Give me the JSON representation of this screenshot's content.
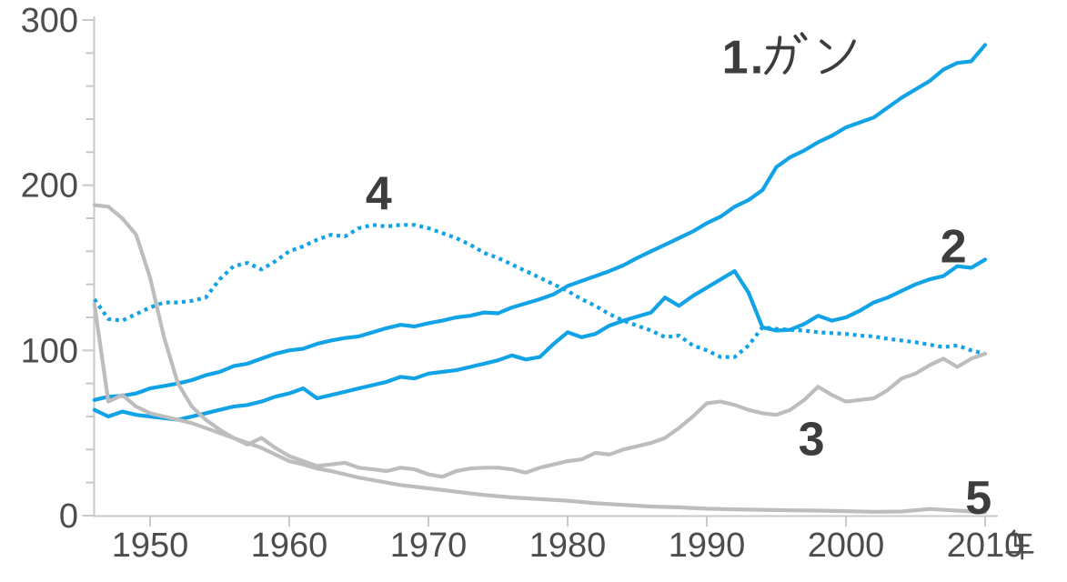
{
  "chart_data": {
    "type": "line",
    "title": "",
    "xlabel": "",
    "ylabel": "",
    "x_unit_label": "年",
    "xlim": [
      1946,
      2010
    ],
    "ylim": [
      0,
      300
    ],
    "x_ticks": [
      1950,
      1960,
      1970,
      1980,
      1990,
      2000,
      2010
    ],
    "y_ticks": [
      0,
      100,
      200,
      300
    ],
    "y_minor_step": 20,
    "grid": false,
    "legend": "inline-annotations",
    "colors": {
      "accent_blue": "#12a3e6",
      "gray_line": "#bdbdbd",
      "axis": "#c9c9c9",
      "tick_text": "#4d4d4d",
      "label_text": "#3d3d3d"
    },
    "series": [
      {
        "name": "1.ガン",
        "color": "#12a3e6",
        "style": "solid",
        "points": [
          [
            1946,
            70
          ],
          [
            1947,
            72
          ],
          [
            1948,
            72.5
          ],
          [
            1949,
            74
          ],
          [
            1950,
            77
          ],
          [
            1951,
            78.5
          ],
          [
            1952,
            80
          ],
          [
            1953,
            82
          ],
          [
            1954,
            85
          ],
          [
            1955,
            87
          ],
          [
            1956,
            90.5
          ],
          [
            1957,
            92
          ],
          [
            1958,
            95
          ],
          [
            1959,
            98
          ],
          [
            1960,
            100
          ],
          [
            1961,
            101
          ],
          [
            1962,
            104
          ],
          [
            1963,
            106
          ],
          [
            1964,
            107.5
          ],
          [
            1965,
            108.5
          ],
          [
            1966,
            111
          ],
          [
            1967,
            113.5
          ],
          [
            1968,
            115.5
          ],
          [
            1969,
            114.5
          ],
          [
            1970,
            116.5
          ],
          [
            1971,
            118
          ],
          [
            1972,
            120
          ],
          [
            1973,
            121
          ],
          [
            1974,
            123
          ],
          [
            1975,
            122.5
          ],
          [
            1976,
            126
          ],
          [
            1977,
            128.5
          ],
          [
            1978,
            131
          ],
          [
            1979,
            134
          ],
          [
            1980,
            139
          ],
          [
            1981,
            142
          ],
          [
            1982,
            145
          ],
          [
            1983,
            148
          ],
          [
            1984,
            151.5
          ],
          [
            1985,
            156
          ],
          [
            1986,
            160
          ],
          [
            1987,
            164
          ],
          [
            1988,
            168
          ],
          [
            1989,
            172
          ],
          [
            1990,
            177
          ],
          [
            1991,
            181
          ],
          [
            1992,
            187
          ],
          [
            1993,
            191
          ],
          [
            1994,
            197
          ],
          [
            1995,
            211
          ],
          [
            1996,
            217
          ],
          [
            1997,
            221
          ],
          [
            1998,
            226
          ],
          [
            1999,
            230
          ],
          [
            2000,
            235
          ],
          [
            2001,
            238
          ],
          [
            2002,
            241
          ],
          [
            2003,
            247
          ],
          [
            2004,
            253
          ],
          [
            2005,
            258
          ],
          [
            2006,
            263
          ],
          [
            2007,
            270
          ],
          [
            2008,
            274
          ],
          [
            2009,
            275
          ],
          [
            2010,
            285
          ]
        ]
      },
      {
        "name": "2",
        "color": "#12a3e6",
        "style": "solid",
        "points": [
          [
            1946,
            64
          ],
          [
            1947,
            60
          ],
          [
            1948,
            63
          ],
          [
            1949,
            61
          ],
          [
            1950,
            60
          ],
          [
            1951,
            59
          ],
          [
            1952,
            58
          ],
          [
            1953,
            60
          ],
          [
            1954,
            62
          ],
          [
            1955,
            64
          ],
          [
            1956,
            66
          ],
          [
            1957,
            67
          ],
          [
            1958,
            69
          ],
          [
            1959,
            72
          ],
          [
            1960,
            74
          ],
          [
            1961,
            77
          ],
          [
            1962,
            71
          ],
          [
            1963,
            73
          ],
          [
            1964,
            75
          ],
          [
            1965,
            77
          ],
          [
            1966,
            79
          ],
          [
            1967,
            81
          ],
          [
            1968,
            84
          ],
          [
            1969,
            83
          ],
          [
            1970,
            86
          ],
          [
            1971,
            87
          ],
          [
            1972,
            88
          ],
          [
            1973,
            90
          ],
          [
            1974,
            92
          ],
          [
            1975,
            94
          ],
          [
            1976,
            97
          ],
          [
            1977,
            94.5
          ],
          [
            1978,
            96
          ],
          [
            1979,
            104
          ],
          [
            1980,
            111
          ],
          [
            1981,
            108
          ],
          [
            1982,
            110
          ],
          [
            1983,
            115
          ],
          [
            1984,
            118
          ],
          [
            1985,
            120.5
          ],
          [
            1986,
            123
          ],
          [
            1987,
            132
          ],
          [
            1988,
            127
          ],
          [
            1989,
            133
          ],
          [
            1990,
            138
          ],
          [
            1991,
            143
          ],
          [
            1992,
            148
          ],
          [
            1993,
            135
          ],
          [
            1994,
            114
          ],
          [
            1995,
            112
          ],
          [
            1996,
            112.5
          ],
          [
            1997,
            116
          ],
          [
            1998,
            121
          ],
          [
            1999,
            118
          ],
          [
            2000,
            120
          ],
          [
            2001,
            124
          ],
          [
            2002,
            129
          ],
          [
            2003,
            132
          ],
          [
            2004,
            136
          ],
          [
            2005,
            140
          ],
          [
            2006,
            143
          ],
          [
            2007,
            145
          ],
          [
            2008,
            151
          ],
          [
            2009,
            150
          ],
          [
            2010,
            155
          ]
        ]
      },
      {
        "name": "3",
        "color": "#bdbdbd",
        "style": "solid",
        "points": [
          [
            1946,
            128
          ],
          [
            1947,
            69
          ],
          [
            1948,
            73
          ],
          [
            1949,
            66
          ],
          [
            1950,
            62
          ],
          [
            1951,
            60
          ],
          [
            1952,
            58
          ],
          [
            1953,
            56
          ],
          [
            1954,
            53
          ],
          [
            1955,
            50
          ],
          [
            1956,
            47
          ],
          [
            1957,
            43
          ],
          [
            1958,
            47
          ],
          [
            1959,
            41
          ],
          [
            1960,
            36
          ],
          [
            1961,
            33
          ],
          [
            1962,
            30
          ],
          [
            1963,
            31
          ],
          [
            1964,
            32
          ],
          [
            1965,
            29
          ],
          [
            1966,
            28
          ],
          [
            1967,
            27
          ],
          [
            1968,
            29
          ],
          [
            1969,
            28
          ],
          [
            1970,
            25
          ],
          [
            1971,
            23.5
          ],
          [
            1972,
            27
          ],
          [
            1973,
            28.5
          ],
          [
            1974,
            29
          ],
          [
            1975,
            29
          ],
          [
            1976,
            28
          ],
          [
            1977,
            26
          ],
          [
            1978,
            29
          ],
          [
            1979,
            31
          ],
          [
            1980,
            33
          ],
          [
            1981,
            34
          ],
          [
            1982,
            38
          ],
          [
            1983,
            37
          ],
          [
            1984,
            40
          ],
          [
            1985,
            42
          ],
          [
            1986,
            44
          ],
          [
            1987,
            47
          ],
          [
            1988,
            53
          ],
          [
            1989,
            60
          ],
          [
            1990,
            68
          ],
          [
            1991,
            69
          ],
          [
            1992,
            67
          ],
          [
            1993,
            64
          ],
          [
            1994,
            62
          ],
          [
            1995,
            61
          ],
          [
            1996,
            64
          ],
          [
            1997,
            70
          ],
          [
            1998,
            78
          ],
          [
            1999,
            73
          ],
          [
            2000,
            69
          ],
          [
            2001,
            70
          ],
          [
            2002,
            71
          ],
          [
            2003,
            76
          ],
          [
            2004,
            83
          ],
          [
            2005,
            86
          ],
          [
            2006,
            91
          ],
          [
            2007,
            95
          ],
          [
            2008,
            90
          ],
          [
            2009,
            95
          ],
          [
            2010,
            98
          ]
        ]
      },
      {
        "name": "4",
        "color": "#12a3e6",
        "style": "dotted",
        "points": [
          [
            1946,
            131
          ],
          [
            1947,
            119
          ],
          [
            1948,
            118
          ],
          [
            1949,
            122
          ],
          [
            1950,
            126
          ],
          [
            1951,
            129
          ],
          [
            1952,
            129
          ],
          [
            1953,
            130
          ],
          [
            1954,
            132
          ],
          [
            1955,
            143
          ],
          [
            1956,
            151
          ],
          [
            1957,
            153
          ],
          [
            1958,
            149
          ],
          [
            1959,
            154
          ],
          [
            1960,
            160
          ],
          [
            1961,
            163
          ],
          [
            1962,
            167
          ],
          [
            1963,
            170
          ],
          [
            1964,
            169
          ],
          [
            1965,
            174
          ],
          [
            1966,
            176
          ],
          [
            1967,
            175
          ],
          [
            1968,
            176
          ],
          [
            1969,
            176
          ],
          [
            1970,
            174
          ],
          [
            1971,
            171
          ],
          [
            1972,
            168
          ],
          [
            1973,
            164
          ],
          [
            1974,
            159
          ],
          [
            1975,
            156
          ],
          [
            1976,
            152
          ],
          [
            1977,
            148
          ],
          [
            1978,
            144
          ],
          [
            1979,
            140
          ],
          [
            1980,
            136
          ],
          [
            1981,
            131
          ],
          [
            1982,
            127
          ],
          [
            1983,
            122
          ],
          [
            1984,
            118
          ],
          [
            1985,
            115
          ],
          [
            1986,
            112
          ],
          [
            1987,
            108
          ],
          [
            1988,
            109
          ],
          [
            1989,
            103
          ],
          [
            1990,
            100
          ],
          [
            1991,
            96
          ],
          [
            1992,
            96
          ],
          [
            1993,
            103
          ],
          [
            1994,
            114
          ],
          [
            1995,
            113
          ],
          [
            1996,
            112.5
          ],
          [
            1997,
            112
          ],
          [
            1998,
            111
          ],
          [
            1999,
            110.5
          ],
          [
            2000,
            110
          ],
          [
            2001,
            109
          ],
          [
            2002,
            108.5
          ],
          [
            2003,
            107
          ],
          [
            2004,
            106
          ],
          [
            2005,
            105
          ],
          [
            2006,
            103.5
          ],
          [
            2007,
            102
          ],
          [
            2008,
            103
          ],
          [
            2009,
            100
          ],
          [
            2010,
            98
          ]
        ]
      },
      {
        "name": "5",
        "color": "#bdbdbd",
        "style": "solid",
        "points": [
          [
            1946,
            188
          ],
          [
            1947,
            187
          ],
          [
            1948,
            180
          ],
          [
            1949,
            170
          ],
          [
            1950,
            144
          ],
          [
            1951,
            108
          ],
          [
            1952,
            80
          ],
          [
            1953,
            66
          ],
          [
            1954,
            58
          ],
          [
            1955,
            52
          ],
          [
            1956,
            47
          ],
          [
            1957,
            44
          ],
          [
            1958,
            41
          ],
          [
            1959,
            37
          ],
          [
            1960,
            33
          ],
          [
            1961,
            31
          ],
          [
            1962,
            28.5
          ],
          [
            1963,
            27
          ],
          [
            1964,
            25
          ],
          [
            1965,
            23
          ],
          [
            1966,
            21.5
          ],
          [
            1967,
            20
          ],
          [
            1968,
            18.5
          ],
          [
            1969,
            17.5
          ],
          [
            1970,
            16.5
          ],
          [
            1972,
            14.5
          ],
          [
            1974,
            12.5
          ],
          [
            1976,
            11
          ],
          [
            1978,
            10
          ],
          [
            1980,
            9
          ],
          [
            1982,
            7.5
          ],
          [
            1984,
            6.5
          ],
          [
            1986,
            5.5
          ],
          [
            1988,
            5
          ],
          [
            1990,
            4.2
          ],
          [
            1992,
            3.8
          ],
          [
            1994,
            3.5
          ],
          [
            1996,
            3.2
          ],
          [
            1998,
            3
          ],
          [
            2000,
            2.7
          ],
          [
            2002,
            2.3
          ],
          [
            2004,
            2.5
          ],
          [
            2006,
            4
          ],
          [
            2008,
            3
          ],
          [
            2010,
            2
          ]
        ]
      }
    ],
    "annotations": [
      {
        "text": "1.ガン",
        "year": 1996.3,
        "value": 278
      },
      {
        "text": "4",
        "year": 1966.5,
        "value": 195.5
      },
      {
        "text": "2",
        "year": 2007.8,
        "value": 163.5
      },
      {
        "text": "3",
        "year": 1997.6,
        "value": 47
      },
      {
        "text": "5",
        "year": 2009.6,
        "value": 11.5
      }
    ]
  }
}
